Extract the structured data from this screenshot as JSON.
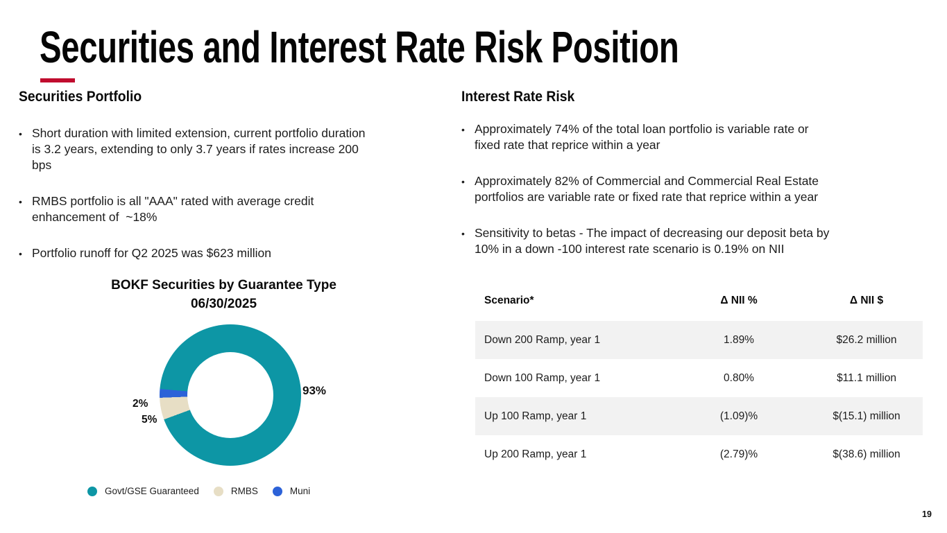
{
  "slide": {
    "title": "Securities and Interest Rate Risk Position",
    "page_number": "19",
    "accent_color": "#C00C2E"
  },
  "left_section": {
    "heading": "Securities Portfolio",
    "bullets": [
      "Short duration with limited extension, current portfolio duration\nis 3.2 years, extending to only 3.7 years if rates increase 200\nbps",
      "RMBS portfolio is all \"AAA\" rated with average credit\nenhancement of  ~18%",
      "Portfolio runoff for Q2 2025 was $623 million"
    ]
  },
  "right_section": {
    "heading": "Interest Rate Risk",
    "bullets": [
      "Approximately 74% of the total loan portfolio is variable rate or\nfixed rate that reprice within a year",
      "Approximately 82% of Commercial and Commercial Real Estate\nportfolios are variable rate or fixed rate that reprice within a year",
      "Sensitivity to betas - The impact of decreasing our deposit beta by\n10% in a down -100 interest rate scenario is 0.19% on NII"
    ]
  },
  "chart_data": {
    "type": "pie",
    "subtype": "donut",
    "title": "BOKF Securities by Guarantee Type",
    "subtitle": "06/30/2025",
    "start_angle_deg": 275,
    "direction": "clockwise",
    "legend_position": "bottom",
    "series": [
      {
        "name": "Govt/GSE Guaranteed",
        "value": 93,
        "label": "93%",
        "color": "#0D96A5"
      },
      {
        "name": "RMBS",
        "value": 5,
        "label": "5%",
        "color": "#E7DEC5"
      },
      {
        "name": "Muni",
        "value": 2,
        "label": "2%",
        "color": "#2C62D8"
      }
    ]
  },
  "table": {
    "stripe_color": "#F2F2F2",
    "headers": [
      "Scenario*",
      "Δ NII %",
      "Δ NII $"
    ],
    "rows": [
      [
        "Down 200 Ramp, year 1",
        "1.89%",
        "$26.2 million"
      ],
      [
        "Down 100 Ramp, year 1",
        "0.80%",
        "$11.1 million"
      ],
      [
        "Up 100 Ramp, year 1",
        "(1.09)%",
        "$(15.1) million"
      ],
      [
        "Up 200 Ramp, year 1",
        "(2.79)%",
        "$(38.6) million"
      ]
    ]
  }
}
